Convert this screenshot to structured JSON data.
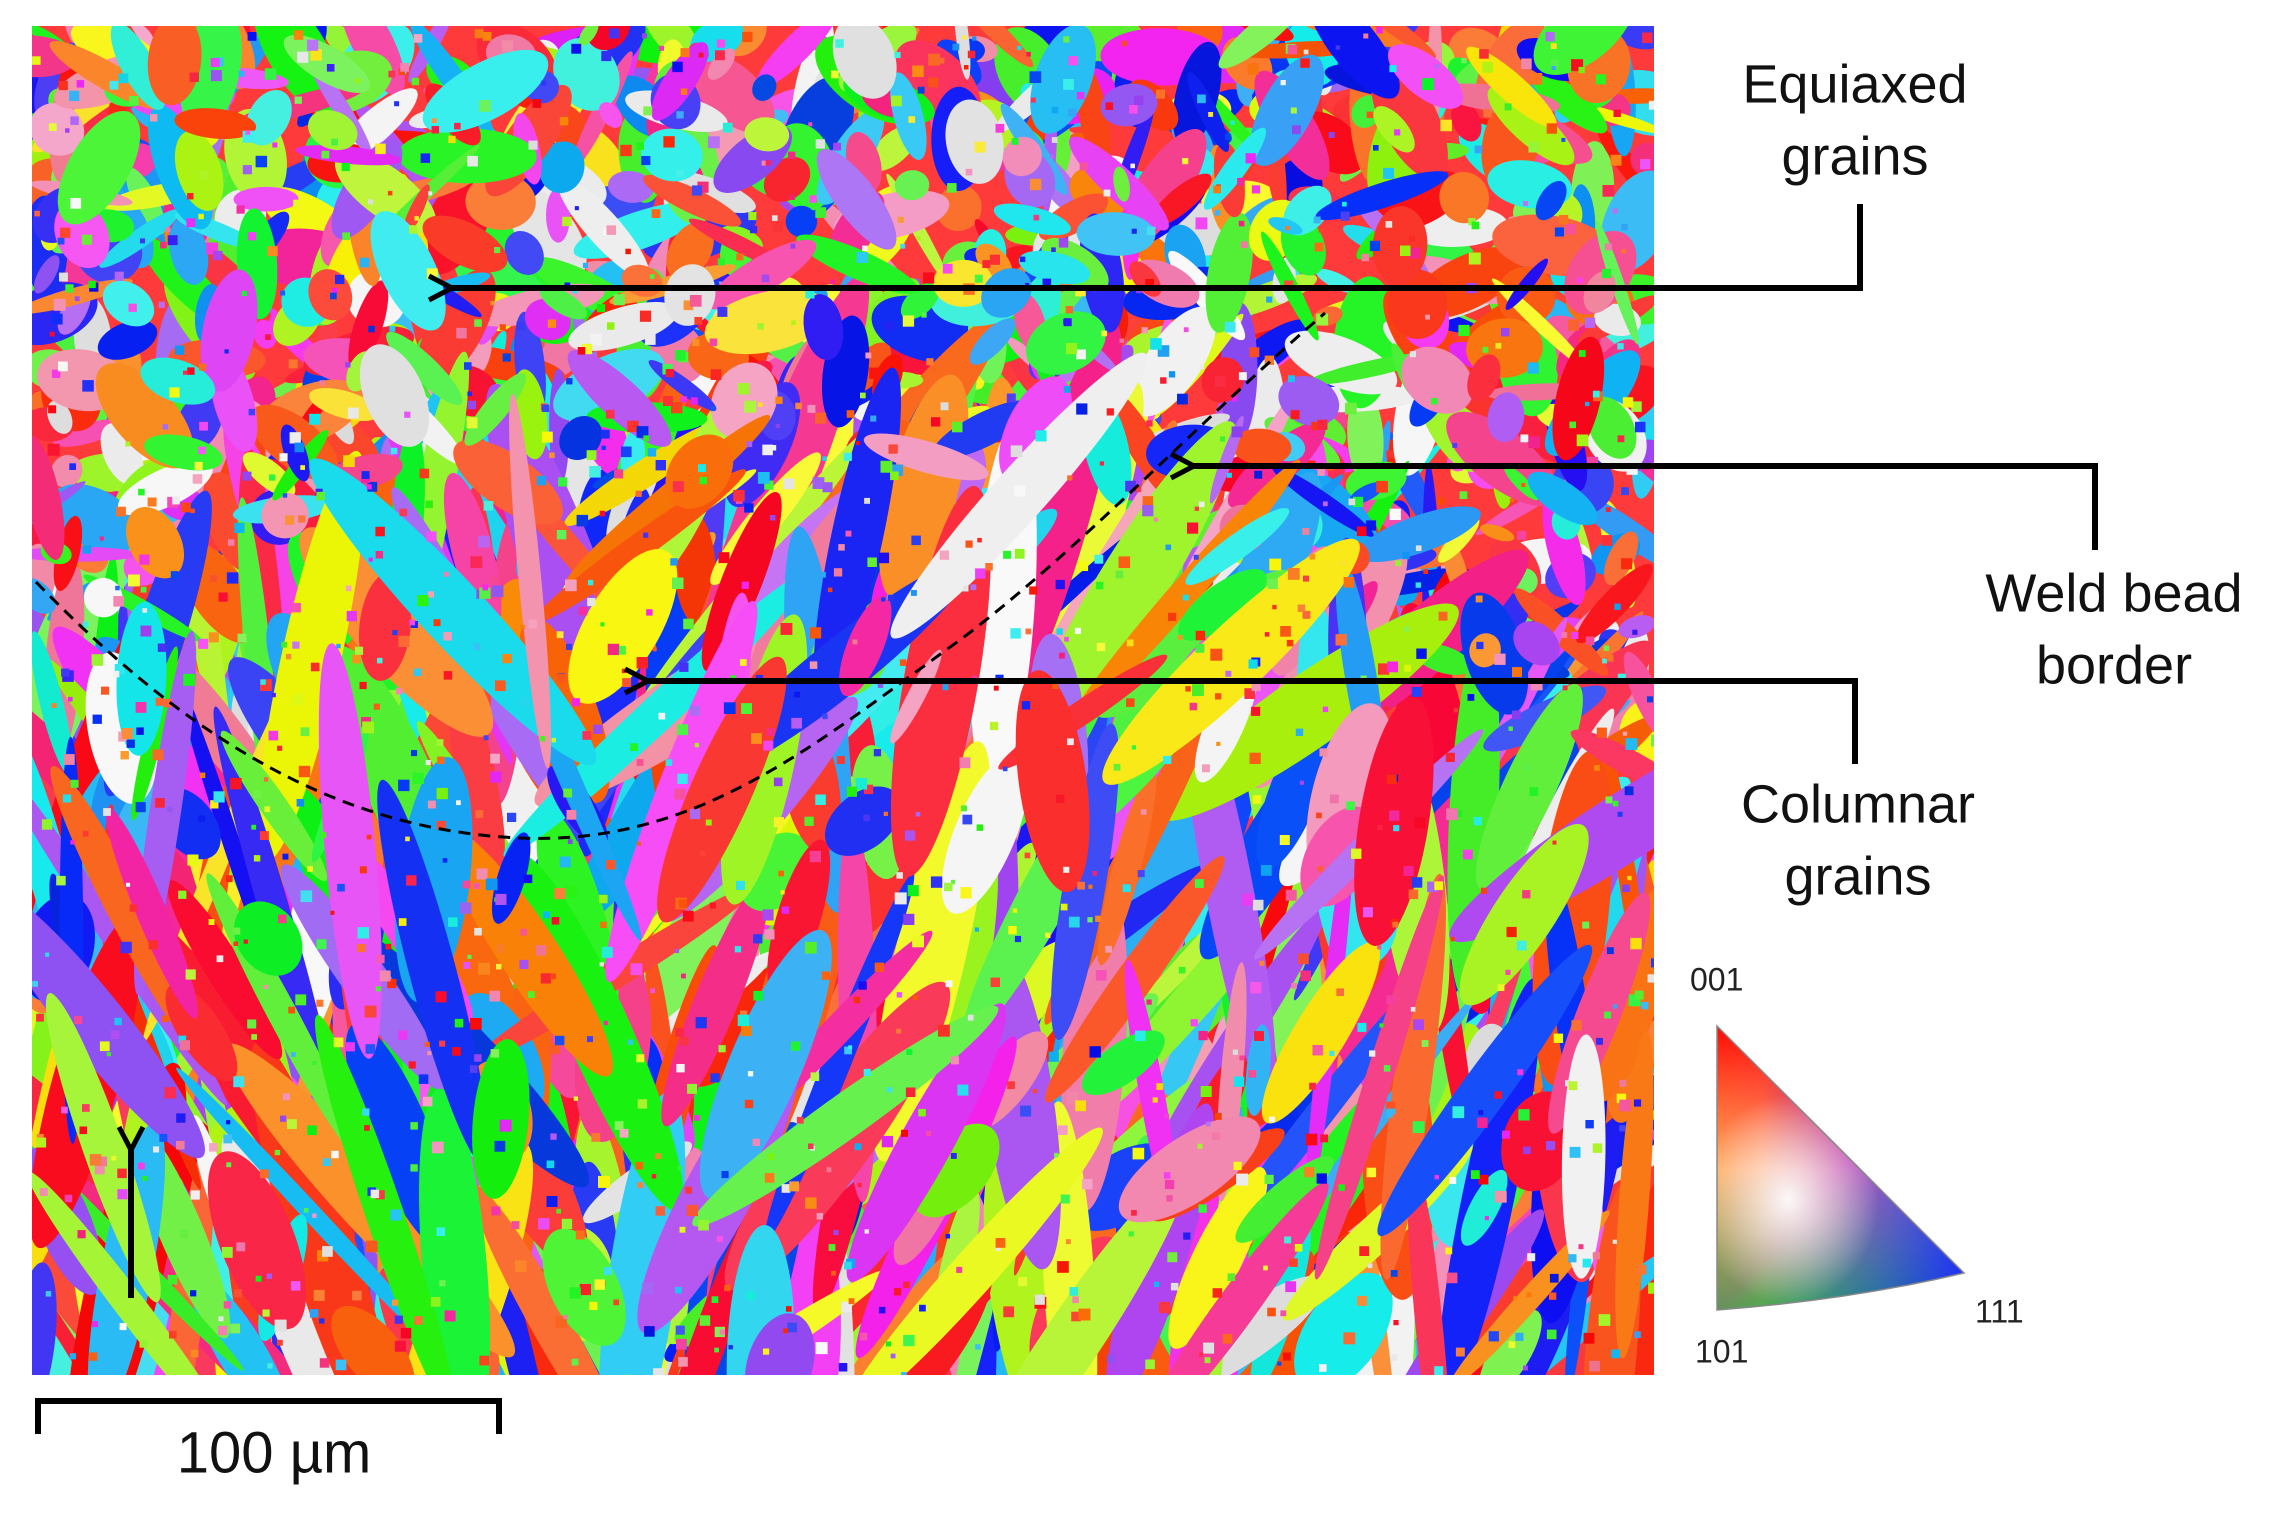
{
  "annotations": [
    {
      "lines": [
        "Equiaxed",
        "grains"
      ]
    },
    {
      "lines": [
        "Weld bead",
        "border"
      ]
    },
    {
      "lines": [
        "Columnar",
        "grains"
      ]
    }
  ],
  "scale_bar": "100 µm",
  "legend": {
    "top": "001",
    "bottom_left": "101",
    "bottom_right": "111"
  }
}
